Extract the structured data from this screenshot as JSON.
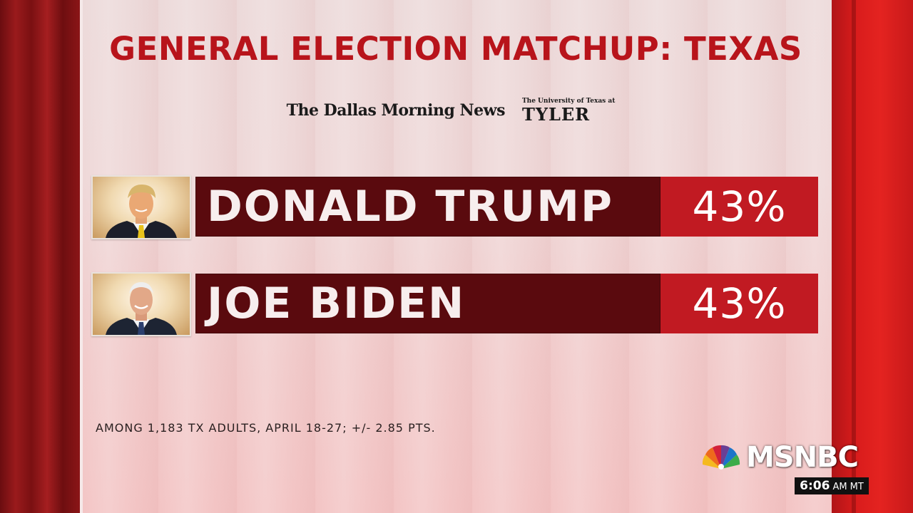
{
  "title": "GENERAL ELECTION MATCHUP: TEXAS",
  "logos": {
    "left": "The Dallas Morning News",
    "right_top": "The University of Texas at",
    "right_main": "TYLER"
  },
  "candidates": [
    {
      "name": "DONALD TRUMP",
      "percent": "43%",
      "photo_icon": "trump-portrait"
    },
    {
      "name": "JOE BIDEN",
      "percent": "43%",
      "photo_icon": "biden-portrait"
    }
  ],
  "footnote": "AMONG 1,183 TX ADULTS, APRIL 18-27; +/- 2.85 PTS.",
  "network": {
    "logo_text": "MSNBC",
    "logo_icon": "peacock-icon",
    "time": "6:06",
    "time_suffix": "AM MT"
  },
  "colors": {
    "title": "#b8141b",
    "name_bar": "#5a0a0e",
    "percent_box": "#c11a22",
    "side_red": "#d91c1c"
  }
}
